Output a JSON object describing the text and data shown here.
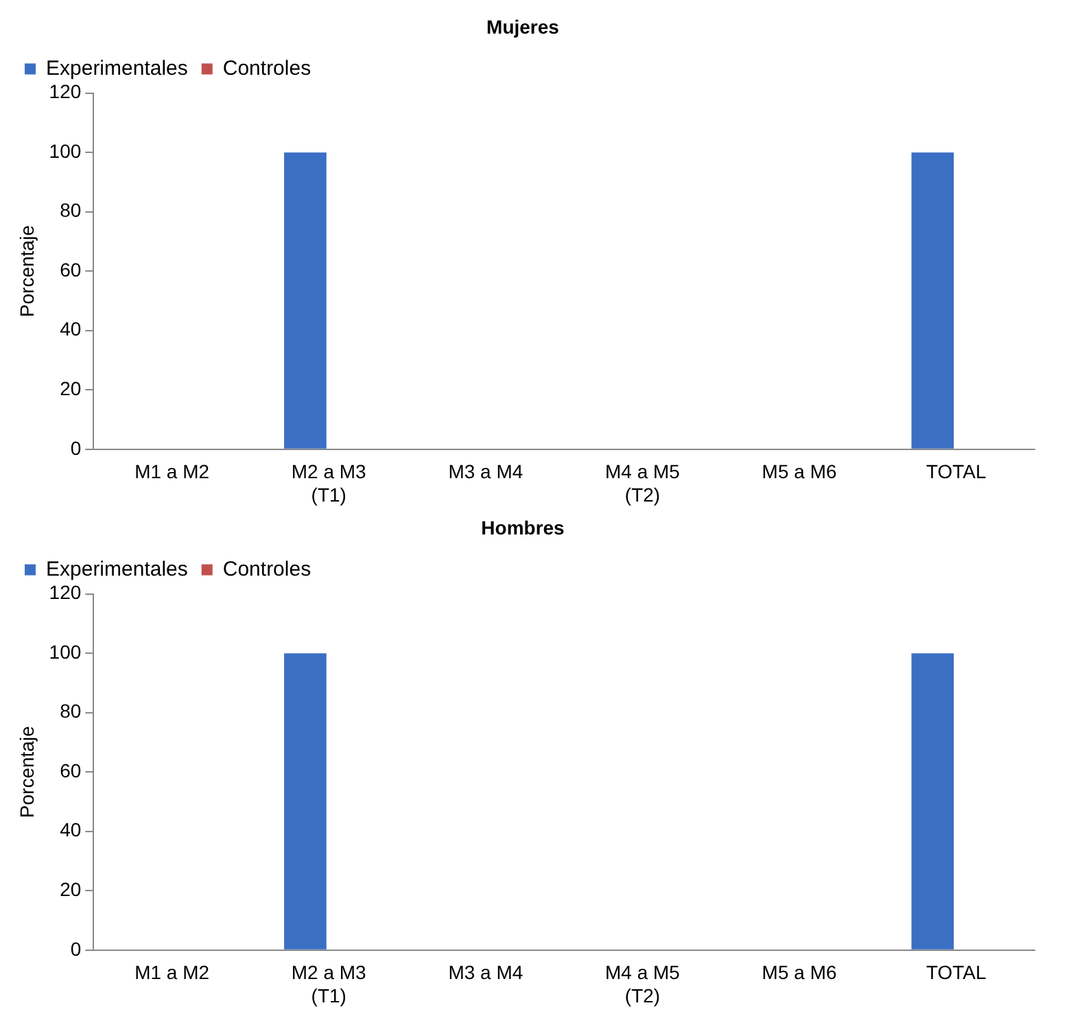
{
  "chart_data": [
    {
      "type": "bar",
      "title": "Mujeres",
      "ylabel": "Porcentaje",
      "categories": [
        "M1 a M2",
        "M2 a M3\n(T1)",
        "M3 a M4",
        "M4 a M5\n(T2)",
        "M5 a M6",
        "TOTAL"
      ],
      "series": [
        {
          "name": "Experimentales",
          "color": "#3b6fc4",
          "values": [
            0,
            100,
            0,
            0,
            0,
            100
          ]
        },
        {
          "name": "Controles",
          "color": "#c0504d",
          "values": [
            0,
            0,
            0,
            0,
            0,
            0
          ]
        }
      ],
      "ylim": [
        0,
        120
      ],
      "yticks": [
        0,
        20,
        40,
        60,
        80,
        100,
        120
      ],
      "grid": false,
      "legend": "top left"
    },
    {
      "type": "bar",
      "title": "Hombres",
      "ylabel": "Porcentaje",
      "categories": [
        "M1 a M2",
        "M2 a M3\n(T1)",
        "M3 a M4",
        "M4 a M5\n(T2)",
        "M5 a M6",
        "TOTAL"
      ],
      "series": [
        {
          "name": "Experimentales",
          "color": "#3b6fc4",
          "values": [
            0,
            100,
            0,
            0,
            0,
            100
          ]
        },
        {
          "name": "Controles",
          "color": "#c0504d",
          "values": [
            0,
            0,
            0,
            0,
            0,
            0
          ]
        }
      ],
      "ylim": [
        0,
        120
      ],
      "yticks": [
        0,
        20,
        40,
        60,
        80,
        100,
        120
      ],
      "grid": false,
      "legend": "top left"
    }
  ]
}
